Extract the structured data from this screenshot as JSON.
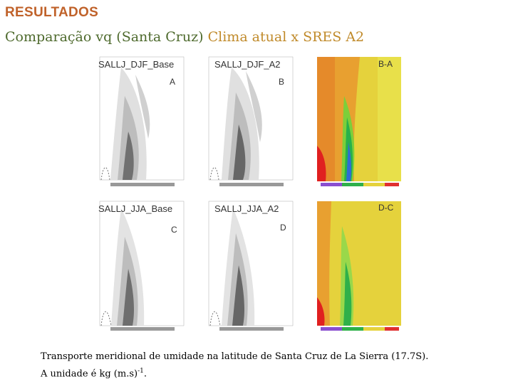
{
  "header": {
    "title": "RESULTADOS",
    "subtitle_dark": "Comparação vq (Santa Cruz)",
    "subtitle_light": "Clima atual x SRES A2"
  },
  "panels": [
    {
      "label_prefix": "SALLJ_DJF_",
      "label_suffix": "Base",
      "letter": "A"
    },
    {
      "label_prefix": "SALLJ_DJF_",
      "label_suffix": "A2",
      "letter": "B"
    },
    {
      "label_prefix": "",
      "label_suffix": "",
      "letter": "B-A"
    },
    {
      "label_prefix": "SALLJ_JJA_",
      "label_suffix": "Base",
      "letter": "C"
    },
    {
      "label_prefix": "SALLJ_JJA_",
      "label_suffix": "A2",
      "letter": "D"
    },
    {
      "label_prefix": "",
      "label_suffix": "",
      "letter": "D-C"
    }
  ],
  "caption": {
    "line1": "Transporte meridional de umidade na latitude de Santa Cruz de La Sierra (17.7S).",
    "line2_text": "A unidade é kg (m.s)",
    "line2_sup": "-1",
    "line2_end": "."
  },
  "colors": {
    "heading": "#c0622a",
    "subtitle_dark": "#4e6a2d",
    "subtitle_light": "#c08a2a"
  }
}
